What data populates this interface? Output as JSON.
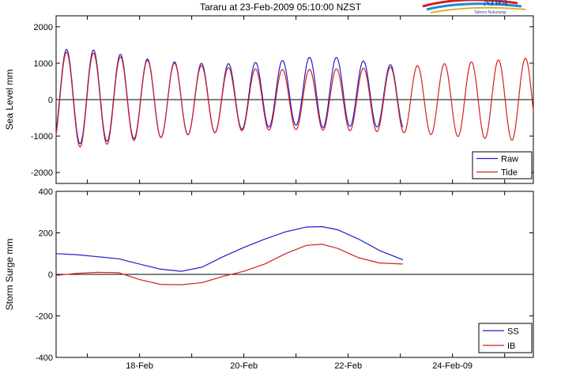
{
  "title": "Tararu at 23-Feb-2009 05:10:00 NZST",
  "logo": {
    "text": "NIWA",
    "tagline": "Taihoro Nukurangi"
  },
  "colors": {
    "blue": "#1f1fc8",
    "red": "#d42020",
    "axis": "#000000",
    "zero": "#000000"
  },
  "chart_data": [
    {
      "type": "line",
      "ylabel": "Sea Level mm",
      "ylim": [
        -2300,
        2300
      ],
      "yticks": [
        -2000,
        -1000,
        0,
        1000,
        2000
      ],
      "xlim": [
        16.4,
        25.55
      ],
      "legend": "bottom-right",
      "series": [
        {
          "name": "Raw",
          "color": "#1f1fc8",
          "x_end": 23.05,
          "phase": 0.2,
          "period": 0.5175,
          "amp_x": [
            16.4,
            17.0,
            18.0,
            19.0,
            20.0,
            21.0,
            21.5,
            22.0,
            22.5,
            23.05
          ],
          "amp_y": [
            1280,
            1300,
            1100,
            980,
            900,
            900,
            980,
            930,
            880,
            850
          ],
          "offset_x": [
            16.4,
            17.5,
            18.5,
            19.5,
            20.5,
            21.2,
            22.0,
            22.6,
            23.05
          ],
          "offset_y": [
            90,
            80,
            10,
            40,
            150,
            220,
            200,
            120,
            70
          ]
        },
        {
          "name": "Tide",
          "color": "#d42020",
          "x_end": 25.55,
          "phase": 0.2,
          "period": 0.5175,
          "amp_x": [
            16.4,
            17.0,
            18.0,
            19.0,
            20.0,
            21.0,
            22.0,
            23.0,
            24.0,
            25.0,
            25.55
          ],
          "amp_y": [
            1300,
            1300,
            1100,
            950,
            850,
            820,
            850,
            900,
            1000,
            1100,
            1150
          ],
          "offset_x": [
            16.4,
            25.55
          ],
          "offset_y": [
            0,
            0
          ]
        }
      ]
    },
    {
      "type": "line",
      "ylabel": "Storm Surge mm",
      "ylim": [
        -400,
        400
      ],
      "yticks": [
        -400,
        -200,
        0,
        200,
        400
      ],
      "xlim": [
        16.4,
        25.55
      ],
      "xticks": [
        18,
        20,
        22,
        24
      ],
      "xticklabels": [
        "18-Feb",
        "20-Feb",
        "22-Feb",
        "24-Feb-09"
      ],
      "legend": "bottom-right",
      "series": [
        {
          "name": "SS",
          "color": "#1f1fc8",
          "x": [
            16.4,
            16.8,
            17.2,
            17.6,
            18.0,
            18.4,
            18.8,
            19.2,
            19.6,
            20.0,
            20.4,
            20.8,
            21.2,
            21.5,
            21.8,
            22.2,
            22.6,
            23.05
          ],
          "y": [
            100,
            95,
            85,
            75,
            50,
            25,
            15,
            35,
            85,
            130,
            170,
            205,
            228,
            230,
            215,
            170,
            115,
            70
          ]
        },
        {
          "name": "IB",
          "color": "#d42020",
          "x": [
            16.4,
            16.8,
            17.2,
            17.6,
            18.0,
            18.4,
            18.8,
            19.2,
            19.6,
            20.0,
            20.4,
            20.8,
            21.2,
            21.5,
            21.8,
            22.2,
            22.6,
            23.05
          ],
          "y": [
            -5,
            5,
            10,
            8,
            -25,
            -48,
            -50,
            -40,
            -10,
            15,
            50,
            100,
            140,
            145,
            125,
            80,
            55,
            50
          ]
        }
      ]
    }
  ]
}
